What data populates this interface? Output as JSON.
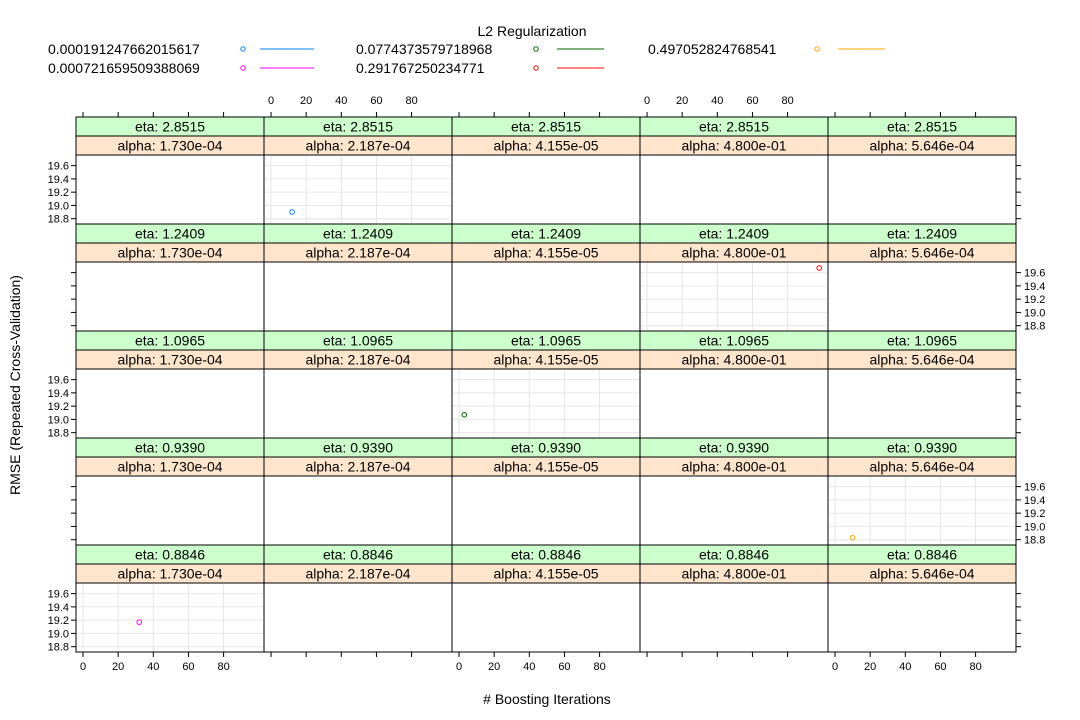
{
  "chart_data": {
    "type": "scatter",
    "legend": {
      "title": "L2 Regularization",
      "placement": "top",
      "entries": [
        {
          "label": "0.000191247662015617",
          "color": "#0080ff"
        },
        {
          "label": "0.000721659509388069",
          "color": "#ff00ff"
        },
        {
          "label": "0.0774373579718968",
          "color": "#006400"
        },
        {
          "label": "0.291767250234771",
          "color": "#ff0000"
        },
        {
          "label": "0.497052824768541",
          "color": "#ffa500"
        }
      ]
    },
    "xlabel": "# Boosting Iterations",
    "ylabel": "RMSE (Repeated Cross-Validation)",
    "xlim": [
      -4,
      103
    ],
    "ylim": [
      18.72,
      19.76
    ],
    "x_ticks": [
      0,
      20,
      40,
      60,
      80
    ],
    "y_ticks": [
      "18.8",
      "19.0",
      "19.2",
      "19.4",
      "19.6"
    ],
    "grid": true,
    "strip_colors": {
      "eta": "#ccffcc",
      "alpha": "#ffe5cc"
    },
    "columns": [
      {
        "alpha_label": "alpha: 1.730e-04"
      },
      {
        "alpha_label": "alpha: 2.187e-04"
      },
      {
        "alpha_label": "alpha: 4.155e-05"
      },
      {
        "alpha_label": "alpha: 4.800e-01"
      },
      {
        "alpha_label": "alpha: 5.646e-04"
      }
    ],
    "rows": [
      {
        "eta_label": "eta: 2.8515"
      },
      {
        "eta_label": "eta: 1.2409"
      },
      {
        "eta_label": "eta: 1.0965"
      },
      {
        "eta_label": "eta: 0.9390"
      },
      {
        "eta_label": "eta: 0.8846"
      }
    ],
    "points": [
      {
        "row": 0,
        "col": 1,
        "x": 12,
        "y": 18.9,
        "series": 0
      },
      {
        "row": 1,
        "col": 3,
        "x": 98,
        "y": 19.67,
        "series": 3
      },
      {
        "row": 2,
        "col": 2,
        "x": 3,
        "y": 19.07,
        "series": 2
      },
      {
        "row": 3,
        "col": 4,
        "x": 10,
        "y": 18.83,
        "series": 4
      },
      {
        "row": 4,
        "col": 0,
        "x": 32,
        "y": 19.17,
        "series": 1
      }
    ]
  }
}
